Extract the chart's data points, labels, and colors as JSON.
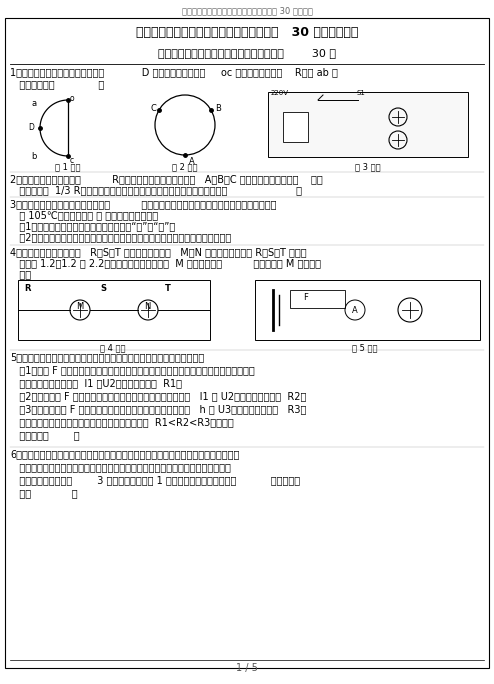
{
  "page_title": "初中科学竞赛辅导《电路》经典简答、探究 30 题含答案",
  "main_title": "初中科学比赛指导《电路》经典简答、研究   30 题（含答案）",
  "sub_title": "初中科学比赛指导《电路》经典简答、研究        30 题",
  "bg_color": "#ffffff",
  "text_color": "#000000",
  "border_color": "#000000",
  "q1_line1": "1．以下图，用均匀导线制成直径为            D 的半圆形线框，已知     oc 两点之间的电阶为    R，则 ab 两",
  "q1_line2": "   点间的电阶为              。",
  "fig1_label": "第 1 题图",
  "fig2_label": "第 2 题图",
  "fig3_label": "第 3 题图",
  "q2_line1": "2．以下图的圆环是由阶值          R、粗细均匀的金属丝制成的，   A、B、C 三点将圆环分成三等份    （每",
  "q2_line2": "   等份电阶为  1/3 R），若将此中随意两点连入电路，则连入电路的电阶值为                      。",
  "q3_line1": "3．电饭锅的原理以下图，烧饭时开关          是闭合的，红色指示灯亮；饭熟后（当时的温度大概",
  "q3_line2": "   为 105℃）保温时开关 是 自动断开，黄灯亮。",
  "q3_sub1": "   （1）请在图中灯泡旁的相应虚线框中填上“红”或“黄”。",
  "q3_sub2": "   （2）往常状况下用这类电饭锅烧水时它的自动断电功能能不可以起作用？为何？",
  "q4_line1": "4．如图电路中，三个电表   R、S、T 连接无误，两个灯   M、N 均正常发光，已知 R、S、T 的读数",
  "q4_line2": "   分别为 1.2、1.2 和 2.2（单位是伏或安），则灯  M 两头的电压为          伏，经过灯 M 的电流为",
  "q4_line3": "   安。",
  "fig4_label": "第 4 题图",
  "fig5_label": "第 5 题图",
  "q5_line1": "5．某同学采用了以下图的电路测定小灯泡灯丝的电阶，他的操作步骤是：",
  "q5_line2": "   （1）断路 F 接至变阶器的最右端，看到小灯泡的灯丝处于亮，但电流表和电压表都有读",
  "q5_line3": "   数，于是记下两表读数  I1 和U2，算出灯丝电阶  R1；",
  "q5_line4": "   （2）将滑用刀 F 移到最右，小灯泡很微弱发光，记下两表读数   I1 和 U2，算出灯丝电阶为  R2；",
  "q5_line5": "   （3）再调滑动刀 F 到电位，使小灯泡正常发光，记下两表读数   h 和 U3，算出灯丝电阶为   R3。",
  "q5_line6": "   他同学的三次操作是正常无误，为什么测量结果是  R1<R2<R3，这说明",
  "q5_line7": "   导体的电阶        。",
  "q6_line1": "6．假设你使两盏灯并联并用一个开关控制这两盏灯同时发光或熏灯（电源用两节干电池",
  "q6_line2": "   串），按要求连接实际线路，以下图，经查：此电路连接有错误，请你帮助更正。",
  "q6_line3": "   要求：最多只到拆掉        3 根连接导线，拔掉 1 根导线，则应找到的导线是           ，如接的导",
  "q6_line4": "   线是             。",
  "footer_text": "1 / 5"
}
